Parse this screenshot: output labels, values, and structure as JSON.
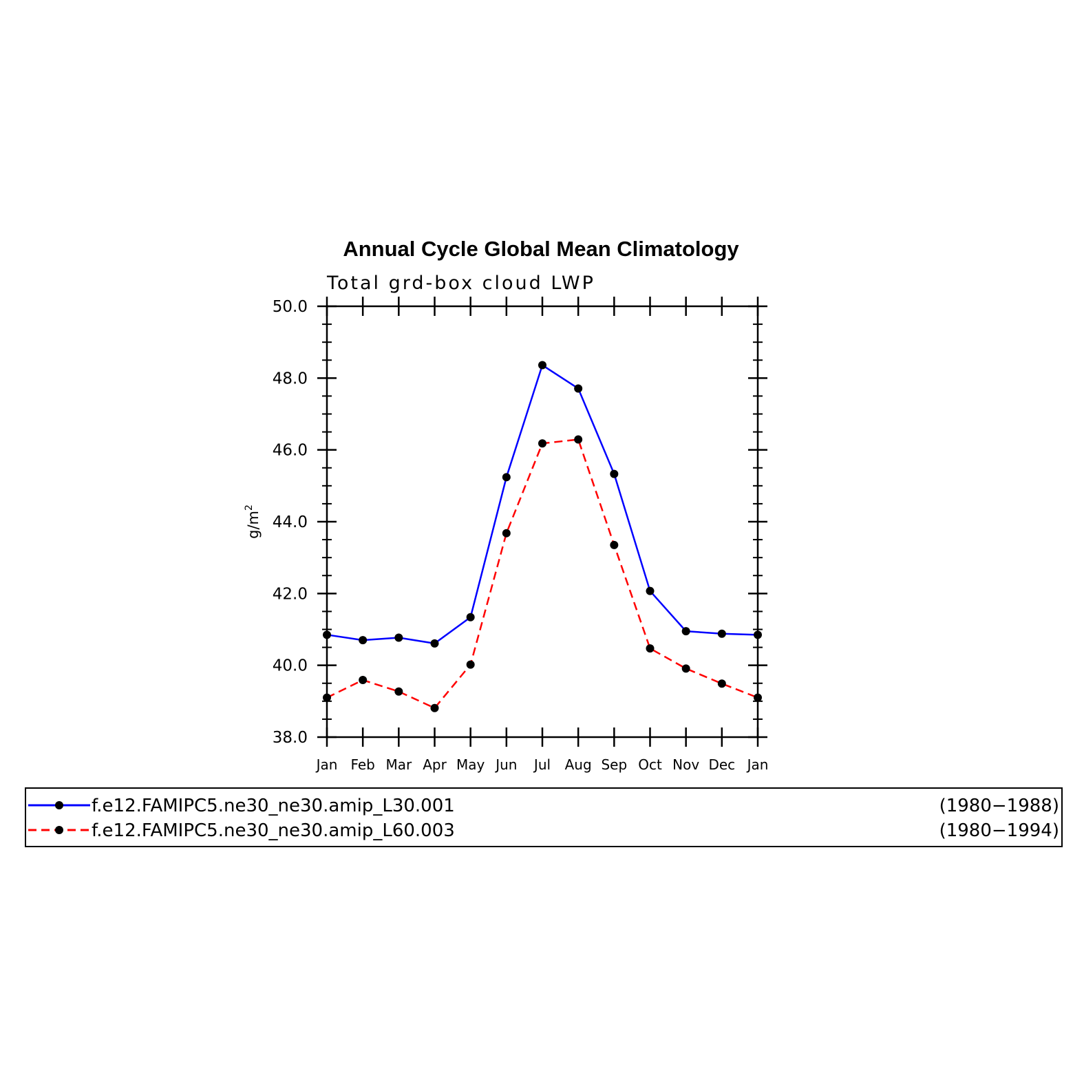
{
  "chart_data": {
    "type": "line",
    "title": "Annual Cycle Global Mean Climatology",
    "subtitle": "Total grd-box cloud LWP",
    "ylabel": "g/m",
    "ylabel_superscript": "2",
    "xlabel": "",
    "categories": [
      "Jan",
      "Feb",
      "Mar",
      "Apr",
      "May",
      "Jun",
      "Jul",
      "Aug",
      "Sep",
      "Oct",
      "Nov",
      "Dec",
      "Jan"
    ],
    "ylim": [
      38.0,
      50.0
    ],
    "yticks": [
      "38.0",
      "40.0",
      "42.0",
      "44.0",
      "46.0",
      "48.0",
      "50.0"
    ],
    "grid": false,
    "legend_position": "bottom",
    "series": [
      {
        "name": "f.e12.FAMIPC5.ne30_ne30.amip_L30.001",
        "years": "(1980−1988)",
        "color": "#0000ff",
        "style": "solid",
        "values": [
          40.85,
          40.7,
          40.77,
          40.61,
          41.34,
          45.24,
          48.36,
          47.71,
          45.33,
          42.07,
          40.95,
          40.88,
          40.85
        ]
      },
      {
        "name": "f.e12.FAMIPC5.ne30_ne30.amip_L60.003",
        "years": "(1980−1994)",
        "color": "#ff0000",
        "style": "dashed",
        "values": [
          39.1,
          39.59,
          39.27,
          38.81,
          40.02,
          43.68,
          46.18,
          46.29,
          43.35,
          40.47,
          39.91,
          39.49,
          39.1
        ]
      }
    ]
  }
}
